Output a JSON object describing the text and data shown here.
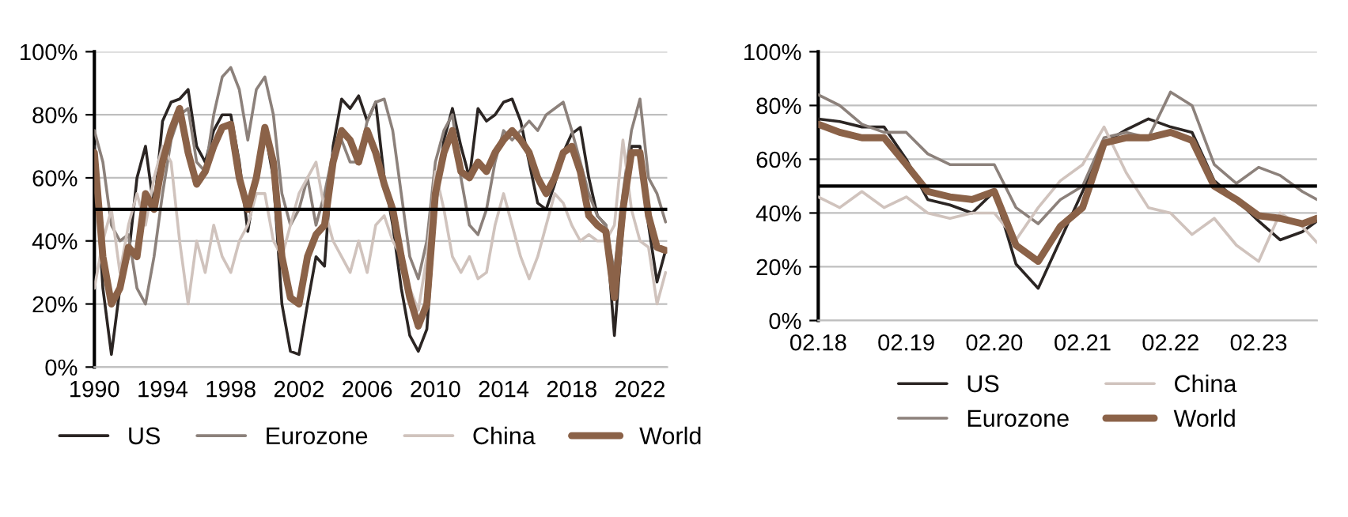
{
  "chart_data": [
    {
      "type": "line",
      "x": [
        1990.0,
        1990.5,
        1991.0,
        1991.5,
        1992.0,
        1992.5,
        1993.0,
        1993.5,
        1994.0,
        1994.5,
        1995.0,
        1995.5,
        1996.0,
        1996.5,
        1997.0,
        1997.5,
        1998.0,
        1998.5,
        1999.0,
        1999.5,
        2000.0,
        2000.5,
        2001.0,
        2001.5,
        2002.0,
        2002.5,
        2003.0,
        2003.5,
        2004.0,
        2004.5,
        2005.0,
        2005.5,
        2006.0,
        2006.5,
        2007.0,
        2007.5,
        2008.0,
        2008.5,
        2009.0,
        2009.5,
        2010.0,
        2010.5,
        2011.0,
        2011.5,
        2012.0,
        2012.5,
        2013.0,
        2013.5,
        2014.0,
        2014.5,
        2015.0,
        2015.5,
        2016.0,
        2016.5,
        2017.0,
        2017.5,
        2018.0,
        2018.5,
        2019.0,
        2019.5,
        2020.0,
        2020.5,
        2021.0,
        2021.5,
        2022.0,
        2022.5,
        2023.0,
        2023.5
      ],
      "series": [
        {
          "name": "US",
          "color": "#2b2523",
          "values": [
            70,
            25,
            4,
            25,
            35,
            60,
            70,
            50,
            78,
            84,
            85,
            88,
            70,
            65,
            75,
            80,
            80,
            65,
            43,
            60,
            75,
            60,
            20,
            5,
            4,
            20,
            35,
            32,
            70,
            85,
            82,
            86,
            78,
            84,
            60,
            45,
            25,
            10,
            5,
            12,
            50,
            72,
            82,
            70,
            60,
            82,
            78,
            80,
            84,
            85,
            78,
            65,
            52,
            50,
            58,
            68,
            74,
            76,
            60,
            48,
            45,
            10,
            45,
            70,
            70,
            45,
            27,
            37
          ]
        },
        {
          "name": "Eurozone",
          "color": "#8c817b",
          "values": [
            75,
            65,
            45,
            40,
            42,
            25,
            20,
            35,
            55,
            72,
            80,
            82,
            65,
            62,
            80,
            92,
            95,
            88,
            72,
            88,
            92,
            80,
            55,
            45,
            50,
            60,
            45,
            55,
            68,
            72,
            65,
            65,
            78,
            84,
            85,
            75,
            55,
            35,
            28,
            40,
            65,
            75,
            80,
            60,
            45,
            42,
            50,
            65,
            75,
            72,
            75,
            78,
            75,
            80,
            82,
            84,
            75,
            65,
            55,
            48,
            45,
            30,
            55,
            75,
            85,
            60,
            55,
            46
          ]
        },
        {
          "name": "China",
          "color": "#d0c3bd",
          "values": [
            25,
            40,
            50,
            30,
            45,
            55,
            45,
            60,
            70,
            65,
            40,
            20,
            40,
            30,
            45,
            35,
            30,
            40,
            45,
            55,
            55,
            40,
            35,
            45,
            55,
            60,
            65,
            50,
            40,
            35,
            30,
            40,
            30,
            45,
            48,
            40,
            35,
            25,
            18,
            35,
            62,
            50,
            35,
            30,
            35,
            28,
            30,
            45,
            55,
            45,
            35,
            28,
            35,
            45,
            55,
            52,
            45,
            40,
            42,
            40,
            40,
            45,
            72,
            50,
            40,
            38,
            20,
            30
          ]
        },
        {
          "name": "World",
          "color": "#8b6248",
          "values": [
            68,
            35,
            20,
            25,
            38,
            35,
            55,
            50,
            65,
            75,
            82,
            68,
            58,
            62,
            70,
            76,
            77,
            60,
            50,
            60,
            76,
            65,
            35,
            22,
            20,
            35,
            42,
            45,
            65,
            75,
            72,
            65,
            75,
            68,
            58,
            50,
            35,
            22,
            13,
            20,
            55,
            68,
            75,
            62,
            60,
            65,
            62,
            68,
            72,
            75,
            72,
            68,
            60,
            55,
            60,
            68,
            70,
            62,
            48,
            45,
            43,
            22,
            50,
            68,
            68,
            48,
            38,
            37
          ]
        }
      ],
      "xlim": [
        1990,
        2023.6
      ],
      "xticks": [
        1990,
        1994,
        1998,
        2002,
        2006,
        2010,
        2014,
        2018,
        2022
      ],
      "ylim": [
        0,
        100
      ],
      "yticks": [
        {
          "value": 0,
          "label": "0%"
        },
        {
          "value": 20,
          "label": "20%"
        },
        {
          "value": 40,
          "label": "40%"
        },
        {
          "value": 60,
          "label": "60%"
        },
        {
          "value": 80,
          "label": "80%"
        },
        {
          "value": 100,
          "label": "100%"
        }
      ],
      "ref_lines": [
        {
          "axis": "y",
          "value": 50,
          "color": "#000000"
        }
      ],
      "grid": "y",
      "legend": "bottom"
    },
    {
      "type": "line",
      "x": [
        "2018-02",
        "2018-05",
        "2018-08",
        "2018-11",
        "2019-02",
        "2019-05",
        "2019-08",
        "2019-11",
        "2020-02",
        "2020-05",
        "2020-08",
        "2020-11",
        "2021-02",
        "2021-05",
        "2021-08",
        "2021-11",
        "2022-02",
        "2022-05",
        "2022-08",
        "2022-11",
        "2023-02",
        "2023-05",
        "2023-08",
        "2023-10"
      ],
      "series": [
        {
          "name": "US",
          "color": "#2b2523",
          "values": [
            75,
            74,
            72,
            72,
            60,
            45,
            43,
            40,
            48,
            21,
            12,
            30,
            48,
            66,
            71,
            75,
            72,
            70,
            52,
            45,
            37,
            30,
            33,
            37
          ]
        },
        {
          "name": "Eurozone",
          "color": "#8c817b",
          "values": [
            84,
            80,
            73,
            70,
            70,
            62,
            58,
            58,
            58,
            42,
            36,
            45,
            50,
            68,
            70,
            68,
            85,
            80,
            58,
            51,
            57,
            54,
            48,
            45
          ]
        },
        {
          "name": "China",
          "color": "#d0c3bd",
          "values": [
            46,
            42,
            48,
            42,
            46,
            40,
            38,
            40,
            40,
            30,
            42,
            52,
            58,
            72,
            55,
            42,
            40,
            32,
            38,
            28,
            22,
            40,
            35,
            29
          ]
        },
        {
          "name": "World",
          "color": "#8b6248",
          "values": [
            73,
            70,
            68,
            68,
            58,
            48,
            46,
            45,
            48,
            28,
            22,
            35,
            42,
            66,
            68,
            68,
            70,
            67,
            50,
            45,
            39,
            38,
            36,
            38
          ]
        }
      ],
      "xlim": [
        "2018-02",
        "2023-10"
      ],
      "xticks": [
        {
          "value": "2018-02",
          "label": "02.18"
        },
        {
          "value": "2019-02",
          "label": "02.19"
        },
        {
          "value": "2020-02",
          "label": "02.20"
        },
        {
          "value": "2021-02",
          "label": "02.21"
        },
        {
          "value": "2022-02",
          "label": "02.22"
        },
        {
          "value": "2023-02",
          "label": "02.23"
        }
      ],
      "ylim": [
        0,
        100
      ],
      "yticks": [
        {
          "value": 0,
          "label": "0%"
        },
        {
          "value": 20,
          "label": "20%"
        },
        {
          "value": 40,
          "label": "40%"
        },
        {
          "value": 60,
          "label": "60%"
        },
        {
          "value": 80,
          "label": "80%"
        },
        {
          "value": 100,
          "label": "100%"
        }
      ],
      "ref_lines": [
        {
          "axis": "y",
          "value": 50,
          "color": "#000000"
        }
      ],
      "grid": "y",
      "legend": "bottom"
    }
  ]
}
